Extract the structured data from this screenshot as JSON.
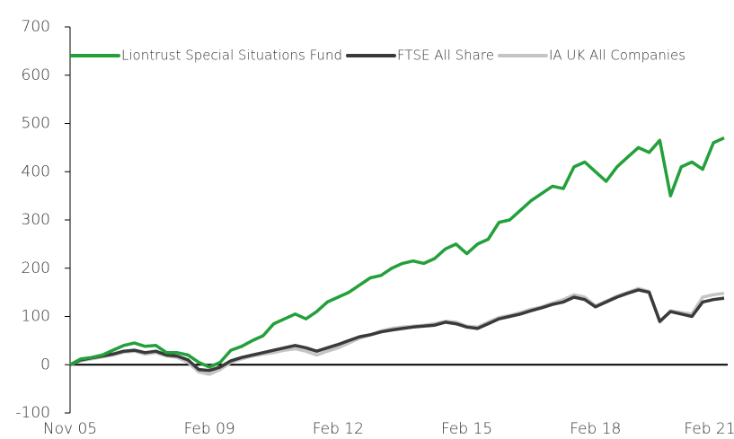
{
  "chart_data": {
    "type": "line",
    "categories": [
      "Nov 05",
      null,
      null,
      null,
      null,
      null,
      null,
      null,
      null,
      null,
      null,
      null,
      null,
      "Feb 09",
      null,
      null,
      null,
      null,
      null,
      null,
      null,
      null,
      null,
      null,
      null,
      "Feb 12",
      null,
      null,
      null,
      null,
      null,
      null,
      null,
      null,
      null,
      null,
      null,
      "Feb 15",
      null,
      null,
      null,
      null,
      null,
      null,
      null,
      null,
      null,
      null,
      null,
      "Feb 18",
      null,
      null,
      null,
      null,
      null,
      null,
      null,
      null,
      null,
      null,
      null,
      "Feb 21"
    ],
    "series": [
      {
        "name": "Liontrust Special Situations Fund",
        "color": "#22a03a",
        "values": [
          0,
          12,
          15,
          20,
          30,
          40,
          45,
          38,
          40,
          25,
          25,
          20,
          5,
          -5,
          5,
          30,
          38,
          50,
          60,
          85,
          95,
          105,
          95,
          110,
          130,
          140,
          150,
          165,
          180,
          185,
          200,
          210,
          215,
          210,
          220,
          240,
          250,
          230,
          250,
          260,
          295,
          300,
          320,
          340,
          355,
          370,
          365,
          410,
          420,
          400,
          380,
          410,
          430,
          450,
          440,
          465,
          350,
          410,
          420,
          405,
          460,
          470
        ]
      },
      {
        "name": "FTSE All Share",
        "color": "#3a3a3a",
        "values": [
          0,
          10,
          14,
          18,
          22,
          28,
          30,
          25,
          28,
          20,
          18,
          10,
          -10,
          -12,
          -5,
          8,
          15,
          20,
          25,
          30,
          35,
          40,
          35,
          28,
          35,
          42,
          50,
          58,
          62,
          68,
          72,
          75,
          78,
          80,
          82,
          88,
          85,
          78,
          75,
          85,
          95,
          100,
          105,
          112,
          118,
          125,
          130,
          140,
          135,
          120,
          130,
          140,
          148,
          155,
          150,
          90,
          110,
          105,
          100,
          130,
          135,
          138
        ]
      },
      {
        "name": "IA UK All Companies",
        "color": "#c4c4c4",
        "values": [
          0,
          8,
          12,
          16,
          20,
          26,
          28,
          22,
          25,
          18,
          15,
          5,
          -15,
          -20,
          -10,
          5,
          12,
          18,
          22,
          25,
          30,
          33,
          28,
          20,
          28,
          35,
          45,
          55,
          62,
          70,
          75,
          78,
          80,
          82,
          85,
          90,
          88,
          80,
          78,
          88,
          98,
          102,
          108,
          115,
          120,
          128,
          135,
          145,
          140,
          122,
          132,
          142,
          150,
          158,
          152,
          88,
          112,
          108,
          105,
          140,
          145,
          148
        ]
      }
    ],
    "ylim": [
      -100,
      700
    ],
    "yticks": [
      -100,
      0,
      100,
      200,
      300,
      400,
      500,
      600,
      700
    ],
    "grid": false,
    "legend": "top"
  }
}
